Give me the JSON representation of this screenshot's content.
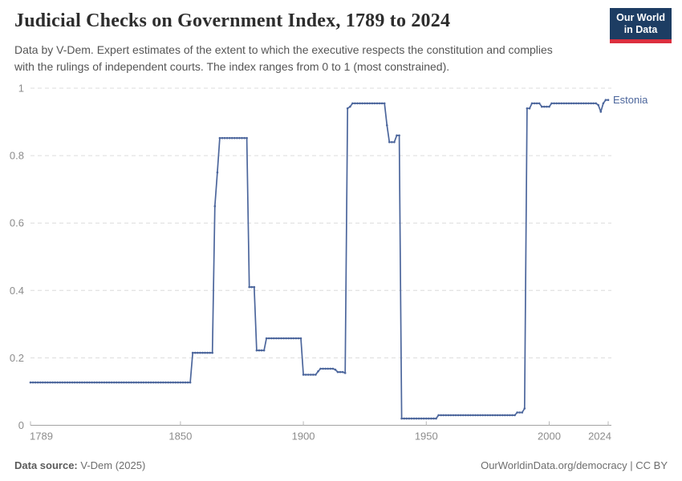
{
  "header": {
    "title": "Judicial Checks on Government Index, 1789 to 2024",
    "subtitle_line1": "Data by V-Dem. Expert estimates of the extent to which the executive respects the constitution and complies",
    "subtitle_line2": "with the rulings of independent courts. The index ranges from 0 to 1 (most constrained).",
    "logo": {
      "line1": "Our World",
      "line2": "in Data",
      "background_color": "#1d3d63",
      "accent_color": "#dc2f3e",
      "text_color": "#ffffff"
    }
  },
  "footer": {
    "source_label": "Data source:",
    "source_value": " V-Dem (2025)",
    "credit_link": "OurWorldinData.org/democracy",
    "credit_suffix": " | CC BY"
  },
  "chart_data": {
    "type": "line",
    "title": "Judicial Checks on Government Index, 1789 to 2024",
    "entity_label": "Estonia",
    "xlabel": "",
    "ylabel": "",
    "x_range": [
      1789,
      2024
    ],
    "y_range": [
      0,
      1
    ],
    "xticks": [
      "1789",
      "1850",
      "1900",
      "1950",
      "2000",
      "2024"
    ],
    "yticks": [
      "0",
      "0.2",
      "0.4",
      "0.6",
      "0.8",
      "1"
    ],
    "grid": "dashed-horizontal",
    "legend_position": "end-of-line-label",
    "series": [
      {
        "name": "Estonia",
        "note": "yearly values encoded as run-length segments [start_year, end_year, value]",
        "segments": [
          [
            1789,
            1854,
            0.127
          ],
          [
            1855,
            1863,
            0.215
          ],
          [
            1864,
            1864,
            0.65
          ],
          [
            1865,
            1865,
            0.75
          ],
          [
            1866,
            1877,
            0.852
          ],
          [
            1878,
            1880,
            0.41
          ],
          [
            1881,
            1884,
            0.222
          ],
          [
            1885,
            1899,
            0.258
          ],
          [
            1900,
            1905,
            0.15
          ],
          [
            1906,
            1906,
            0.16
          ],
          [
            1907,
            1912,
            0.168
          ],
          [
            1913,
            1913,
            0.165
          ],
          [
            1914,
            1916,
            0.158
          ],
          [
            1917,
            1917,
            0.155
          ],
          [
            1918,
            1918,
            0.94
          ],
          [
            1919,
            1919,
            0.945
          ],
          [
            1920,
            1933,
            0.955
          ],
          [
            1934,
            1934,
            0.89
          ],
          [
            1935,
            1937,
            0.84
          ],
          [
            1938,
            1939,
            0.86
          ],
          [
            1940,
            1954,
            0.02
          ],
          [
            1955,
            1986,
            0.03
          ],
          [
            1987,
            1989,
            0.038
          ],
          [
            1990,
            1990,
            0.05
          ],
          [
            1991,
            1992,
            0.94
          ],
          [
            1993,
            1996,
            0.955
          ],
          [
            1997,
            2000,
            0.945
          ],
          [
            2001,
            2019,
            0.955
          ],
          [
            2020,
            2020,
            0.95
          ],
          [
            2021,
            2021,
            0.93
          ],
          [
            2022,
            2022,
            0.955
          ],
          [
            2023,
            2024,
            0.965
          ]
        ]
      }
    ],
    "colors": {
      "line": "#4c669c",
      "grid": "#dcdcdc",
      "axis": "#a3a3a3",
      "tick_mark": "#b8b8b8",
      "tick_label": "#8c8c8c"
    }
  }
}
